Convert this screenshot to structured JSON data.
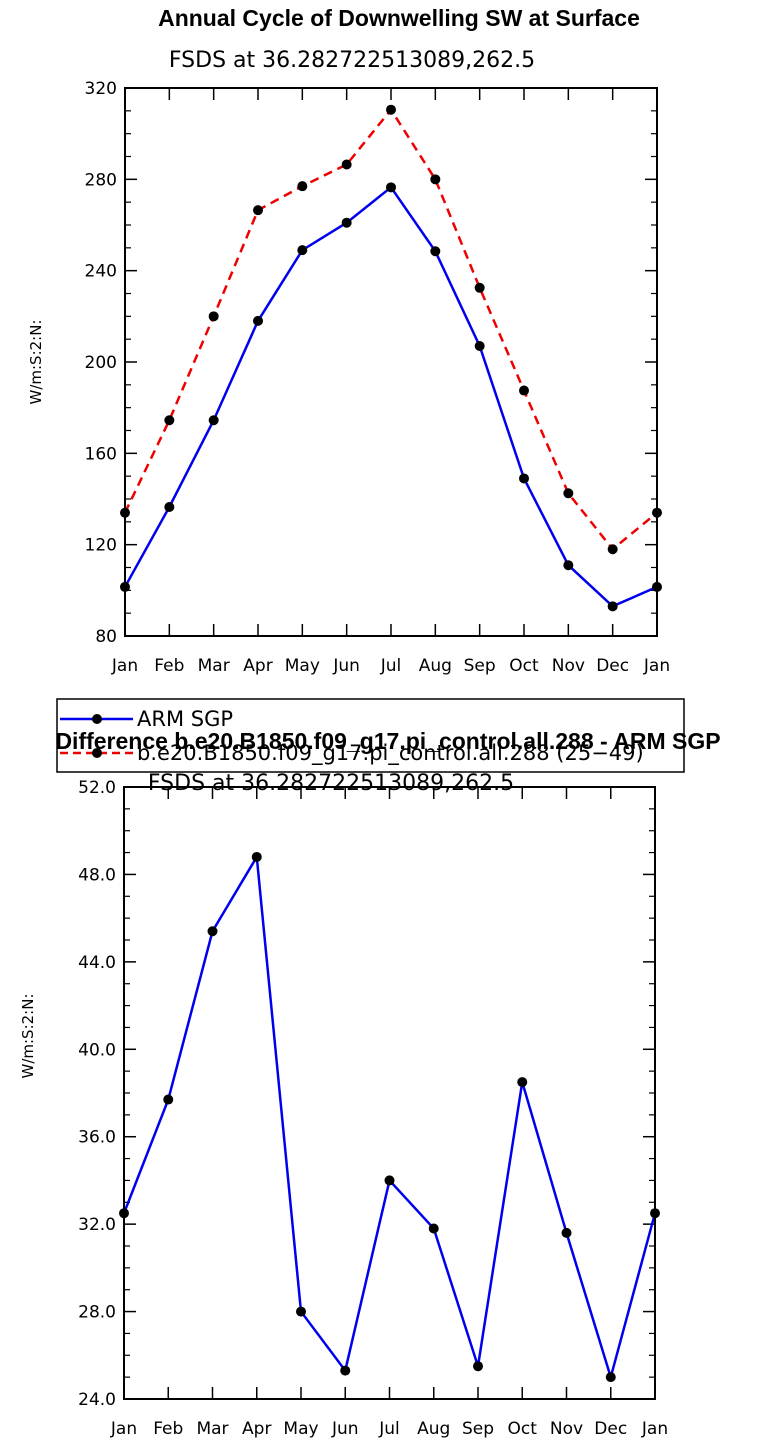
{
  "chart_data": [
    {
      "type": "line",
      "title": "Annual Cycle of Downwelling SW at Surface",
      "subtitle": "FSDS at 36.282722513089,262.5",
      "xlabel": "",
      "ylabel": "W/m:S:2:N:",
      "categories": [
        "Jan",
        "Feb",
        "Mar",
        "Apr",
        "May",
        "Jun",
        "Jul",
        "Aug",
        "Sep",
        "Oct",
        "Nov",
        "Dec",
        "Jan"
      ],
      "ylim": [
        80,
        320
      ],
      "yticks": [
        80,
        120,
        160,
        200,
        240,
        280,
        320
      ],
      "ytick_labels": [
        "80",
        "120",
        "160",
        "200",
        "240",
        "280",
        "320"
      ],
      "legend_position": "bottom, outside plot",
      "grid": false,
      "series": [
        {
          "name": "ARM SGP",
          "color": "#0000ee",
          "dash": "solid",
          "values": [
            101.5,
            136.5,
            174.5,
            218,
            249,
            261,
            276.5,
            248.5,
            207,
            149,
            111,
            93,
            101.5
          ]
        },
        {
          "name": "b.e20.B1850.f09_g17.pi_control.all.288 (25−49)",
          "color": "#ee0000",
          "dash": "dashed",
          "values": [
            134,
            174.5,
            220,
            266.5,
            277,
            286.5,
            310.5,
            280,
            232.5,
            187.5,
            142.5,
            118,
            134
          ]
        }
      ]
    },
    {
      "type": "line",
      "title": "Difference b.e20.B1850.f09_g17.pi_control.all.288 - ARM SGP",
      "subtitle": "FSDS at 36.282722513089,262.5",
      "xlabel": "",
      "ylabel": "W/m:S:2:N:",
      "categories": [
        "Jan",
        "Feb",
        "Mar",
        "Apr",
        "May",
        "Jun",
        "Jul",
        "Aug",
        "Sep",
        "Oct",
        "Nov",
        "Dec",
        "Jan"
      ],
      "ylim": [
        24,
        52
      ],
      "yticks": [
        24,
        28,
        32,
        36,
        40,
        44,
        48,
        52
      ],
      "ytick_labels": [
        "24.0",
        "28.0",
        "32.0",
        "36.0",
        "40.0",
        "44.0",
        "48.0",
        "52.0"
      ],
      "grid": false,
      "series": [
        {
          "color": "#0000ee",
          "dash": "solid",
          "values": [
            32.5,
            37.7,
            45.4,
            48.8,
            28.0,
            25.3,
            34.0,
            31.8,
            25.5,
            38.5,
            31.6,
            25.0,
            32.5
          ]
        }
      ]
    }
  ]
}
